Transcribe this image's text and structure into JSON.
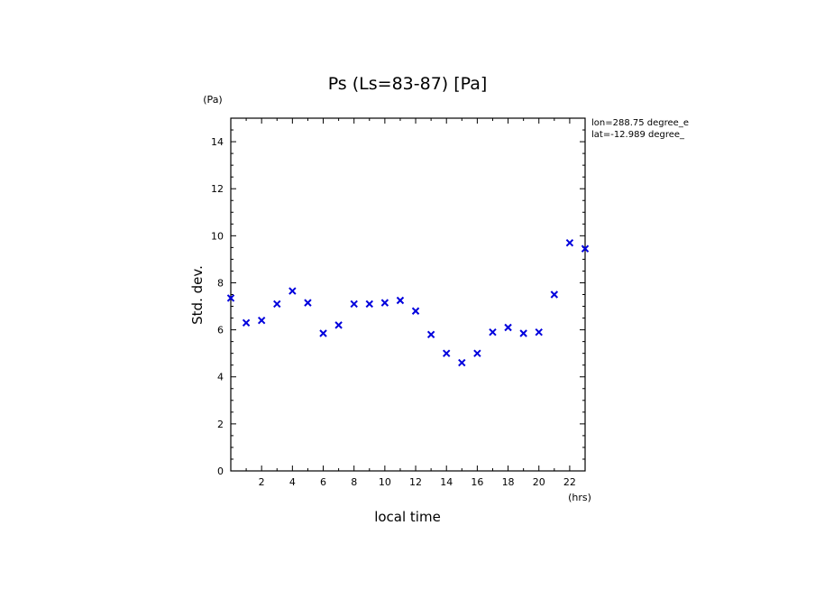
{
  "chart_data": {
    "type": "scatter",
    "title": "Ps (Ls=83-87) [Pa]",
    "xlabel": "local time",
    "ylabel": "Std. dev.",
    "x_unit": "(hrs)",
    "y_unit": "(Pa)",
    "xlim": [
      0,
      23
    ],
    "ylim": [
      0,
      15
    ],
    "x_ticks": [
      2,
      4,
      6,
      8,
      10,
      12,
      14,
      16,
      18,
      20,
      22
    ],
    "y_ticks": [
      0,
      2,
      4,
      6,
      8,
      10,
      12,
      14
    ],
    "grid": false,
    "legend": "none",
    "marker": "x",
    "color": "#0000dd",
    "annotations": [
      "lon=288.75 degree_e",
      "lat=-12.989 degree_"
    ],
    "series": [
      {
        "x": [
          0,
          1,
          2,
          3,
          4,
          5,
          6,
          7,
          8,
          9,
          10,
          11,
          12,
          13,
          14,
          15,
          16,
          17,
          18,
          19,
          20,
          21,
          22,
          23
        ],
        "y": [
          7.35,
          6.3,
          6.4,
          7.1,
          7.65,
          7.15,
          5.85,
          6.2,
          7.1,
          7.1,
          7.15,
          7.25,
          6.8,
          5.8,
          5.0,
          4.6,
          5.0,
          5.9,
          6.1,
          5.85,
          5.9,
          7.5,
          9.7,
          9.45
        ]
      }
    ]
  }
}
